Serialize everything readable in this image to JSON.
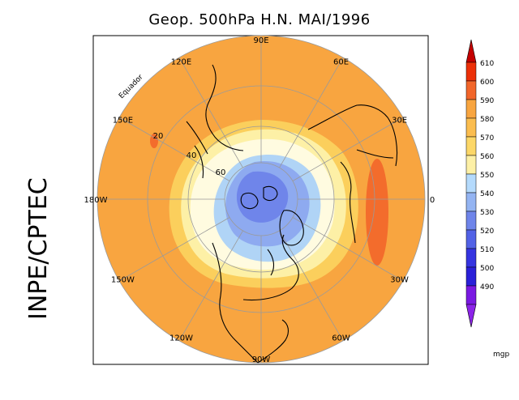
{
  "title": "Geop. 500hPa H.N. MAI/1996",
  "side_label": "INPE/CPTEC",
  "map": {
    "projection": "north-polar-stereographic",
    "longitude_labels": [
      "90E",
      "60E",
      "30E",
      "0",
      "30W",
      "60W",
      "90W",
      "120W",
      "150W",
      "180W",
      "150E",
      "120E"
    ],
    "latitude_labels": [
      "20",
      "40",
      "60"
    ],
    "equator_label": "Equador",
    "field_colors": {
      "outer": "#f8a540",
      "ring_580": "#fbcf5c",
      "ring_560": "#fdf0a6",
      "ring_550": "#fffbe0",
      "ring_540": "#b0d4f6",
      "ring_530": "#8eaaf0",
      "core": "#6f85ea",
      "high_590": "#f36c2c"
    }
  },
  "colorbar": {
    "unit": "mgp",
    "levels": [
      "610",
      "600",
      "590",
      "580",
      "570",
      "560",
      "550",
      "540",
      "530",
      "520",
      "510",
      "500",
      "490"
    ],
    "colors": [
      "#ec3008",
      "#f2662a",
      "#f8a540",
      "#fbbd4f",
      "#fcd768",
      "#fdf0a6",
      "#b4dafc",
      "#94b4f2",
      "#6f85ea",
      "#5262e6",
      "#3534e0",
      "#2a20d8",
      "#7a19e2"
    ],
    "top_arrow_color": "#c40000",
    "bottom_arrow_color": "#8c23e8"
  }
}
